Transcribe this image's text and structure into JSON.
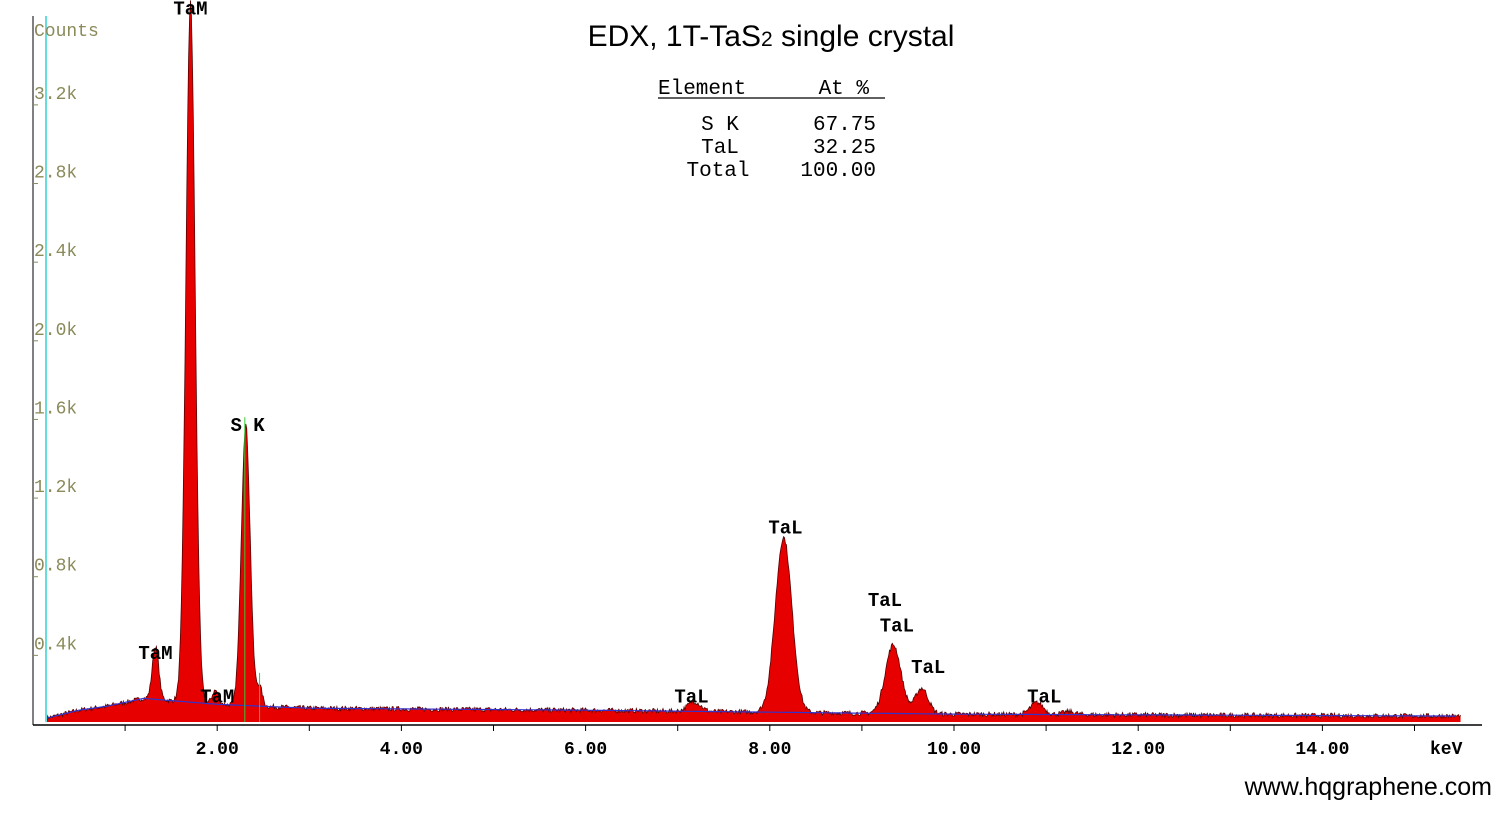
{
  "chart_data": {
    "type": "area",
    "title": "EDX, 1T-TaS",
    "title_subscript": "2",
    "title_suffix": " single crystal",
    "ylabel": "Counts",
    "xunit_label": "keV",
    "xlim": [
      0.0,
      15.5
    ],
    "ylim": [
      0,
      3.6
    ],
    "ytick_labels": [
      {
        "v": 0.4,
        "t": "0.4k"
      },
      {
        "v": 0.8,
        "t": "0.8k"
      },
      {
        "v": 1.2,
        "t": "1.2k"
      },
      {
        "v": 1.6,
        "t": "1.6k"
      },
      {
        "v": 2.0,
        "t": "2.0k"
      },
      {
        "v": 2.4,
        "t": "2.4k"
      },
      {
        "v": 2.8,
        "t": "2.8k"
      },
      {
        "v": 3.2,
        "t": "3.2k"
      }
    ],
    "xtick_labels": [
      {
        "v": 2,
        "t": "2.00"
      },
      {
        "v": 4,
        "t": "4.00"
      },
      {
        "v": 6,
        "t": "6.00"
      },
      {
        "v": 8,
        "t": "8.00"
      },
      {
        "v": 10,
        "t": "10.00"
      },
      {
        "v": 12,
        "t": "12.00"
      },
      {
        "v": 14,
        "t": "14.00"
      }
    ],
    "series_fill": "#e60000",
    "baseline_color": "#3333cc",
    "marker_color": "#66dddd",
    "background_points_keV_kcounts": [
      [
        0.15,
        0.02
      ],
      [
        0.5,
        0.06
      ],
      [
        0.8,
        0.08
      ],
      [
        1.2,
        0.12
      ],
      [
        2.0,
        0.09
      ],
      [
        3.0,
        0.07
      ],
      [
        6.0,
        0.06
      ],
      [
        10.0,
        0.04
      ],
      [
        15.5,
        0.03
      ]
    ],
    "peaks": [
      {
        "label": "TaM",
        "center_keV": 1.71,
        "height_kcounts": 3.56,
        "width_keV": 0.05
      },
      {
        "label": "TaM",
        "center_keV": 1.33,
        "height_kcounts": 0.27,
        "width_keV": 0.035
      },
      {
        "label": "TaM",
        "center_keV": 1.98,
        "height_kcounts": 0.07,
        "width_keV": 0.035
      },
      {
        "label": "S K",
        "center_keV": 2.31,
        "height_kcounts": 1.43,
        "width_keV": 0.048
      },
      {
        "label": "",
        "center_keV": 2.46,
        "height_kcounts": 0.1,
        "width_keV": 0.03
      },
      {
        "label": "TaL",
        "center_keV": 7.18,
        "height_kcounts": 0.05,
        "width_keV": 0.07
      },
      {
        "label": "TaL",
        "center_keV": 8.15,
        "height_kcounts": 0.89,
        "width_keV": 0.09
      },
      {
        "label": "TaL",
        "center_keV": 9.34,
        "height_kcounts": 0.35,
        "width_keV": 0.085
      },
      {
        "label": "TaL",
        "center_keV": 9.65,
        "height_kcounts": 0.13,
        "width_keV": 0.07
      },
      {
        "label": "TaL",
        "center_keV": 10.9,
        "height_kcounts": 0.06,
        "width_keV": 0.07
      },
      {
        "label": "",
        "center_keV": 11.25,
        "height_kcounts": 0.015,
        "width_keV": 0.07
      }
    ],
    "peak_labels": [
      {
        "text": "TaM",
        "x_keV": 1.71,
        "y_kcounts": 3.6
      },
      {
        "text": "TaM",
        "x_keV": 1.33,
        "y_kcounts": 0.32
      },
      {
        "text": "TaM",
        "x_keV": 2.0,
        "y_kcounts": 0.1
      },
      {
        "text": "S  K",
        "x_keV": 2.33,
        "y_kcounts": 1.48
      },
      {
        "text": "TaL",
        "x_keV": 7.15,
        "y_kcounts": 0.1
      },
      {
        "text": "TaL",
        "x_keV": 8.17,
        "y_kcounts": 0.96
      },
      {
        "text": "TaL",
        "x_keV": 9.25,
        "y_kcounts": 0.59
      },
      {
        "text": "TaL",
        "x_keV": 9.38,
        "y_kcounts": 0.46
      },
      {
        "text": "TaL",
        "x_keV": 9.72,
        "y_kcounts": 0.25
      },
      {
        "text": "TaL",
        "x_keV": 10.98,
        "y_kcounts": 0.1
      }
    ]
  },
  "composition_table": {
    "headers": [
      "Element",
      "At %"
    ],
    "rows": [
      [
        "S K",
        "67.75"
      ],
      [
        "TaL",
        "32.25"
      ],
      [
        "Total",
        "100.00"
      ]
    ]
  },
  "footer": {
    "website": "www.hqgraphene.com"
  }
}
